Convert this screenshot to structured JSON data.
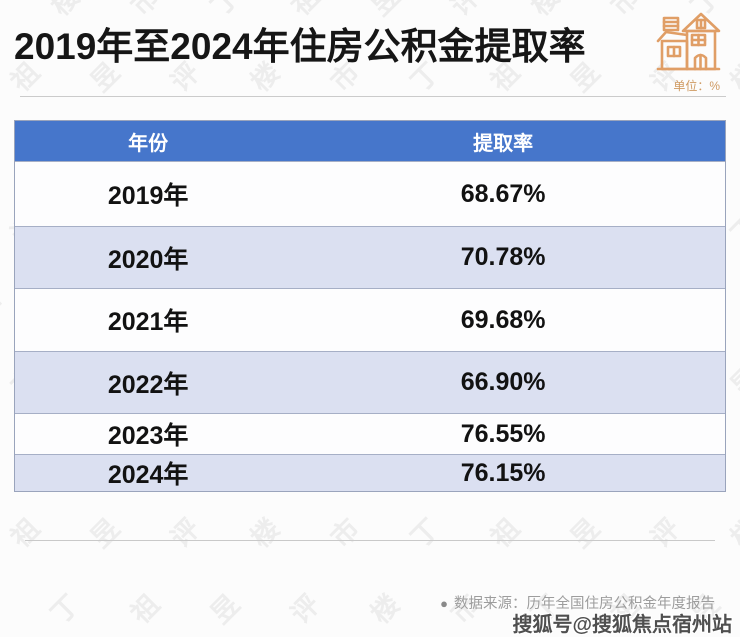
{
  "page": {
    "title": "2019年至2024年住房公积金提取率",
    "unit_label": "单位：%"
  },
  "table": {
    "headers": {
      "year": "年份",
      "rate": "提取率"
    },
    "rows": [
      {
        "year": "2019年",
        "rate": "68.67%"
      },
      {
        "year": "2020年",
        "rate": "70.78%"
      },
      {
        "year": "2021年",
        "rate": "69.68%"
      },
      {
        "year": "2022年",
        "rate": "66.90%"
      },
      {
        "year": "2023年",
        "rate": "76.55%"
      },
      {
        "year": "2024年",
        "rate": "76.15%"
      }
    ]
  },
  "footer": {
    "source_bullet": "●",
    "source": "数据来源：历年全国住房公积金年度报告",
    "publisher_watermark": "搜狐号@搜狐焦点宿州站"
  },
  "background_watermark": {
    "chars": [
      "评",
      "楼",
      "市",
      "丁",
      "祖",
      "昱"
    ]
  },
  "colors": {
    "header_bg": "#4676cb",
    "row_alt_bg": "#dbe0f1",
    "row_bg": "#fdfdfe",
    "accent_orange": "#e09e66",
    "title_color": "#161616",
    "source_gray": "#9d9d9d"
  },
  "chart_data": {
    "type": "table",
    "title": "2019年至2024年住房公积金提取率",
    "columns": [
      "年份",
      "提取率"
    ],
    "categories": [
      "2019年",
      "2020年",
      "2021年",
      "2022年",
      "2023年",
      "2024年"
    ],
    "values": [
      68.67,
      70.78,
      69.68,
      66.9,
      76.55,
      76.15
    ],
    "unit": "%",
    "source": "历年全国住房公积金年度报告"
  }
}
